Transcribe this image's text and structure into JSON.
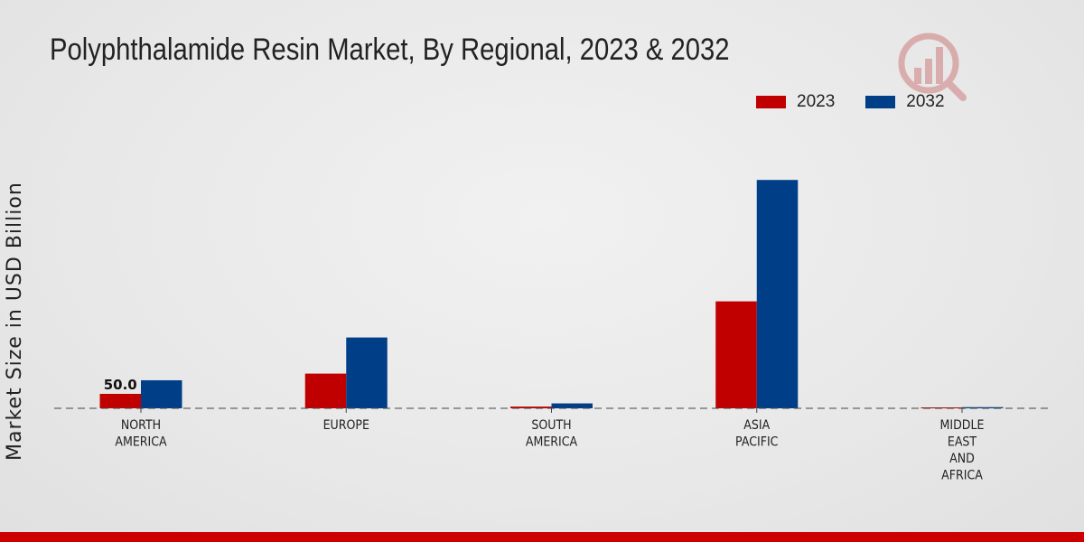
{
  "header": {
    "title": "Polyphthalamide Resin Market, By Regional, 2023 & 2032"
  },
  "colors": {
    "series_2023": "#c00000",
    "series_2032": "#003f87",
    "bottom_bar": "#cc0000"
  },
  "chart_data": {
    "type": "bar",
    "title": "Polyphthalamide Resin Market, By Regional, 2023 & 2032",
    "xlabel": "",
    "ylabel": "Market Size in USD Billion",
    "categories": [
      [
        "NORTH",
        "AMERICA"
      ],
      [
        "EUROPE"
      ],
      [
        "SOUTH",
        "AMERICA"
      ],
      [
        "ASIA",
        "PACIFIC"
      ],
      [
        "MIDDLE",
        "EAST",
        "AND",
        "AFRICA"
      ]
    ],
    "series": [
      {
        "name": "2023",
        "color": "#c00000",
        "values": [
          50.0,
          120.0,
          6.0,
          370.0,
          2.0
        ]
      },
      {
        "name": "2032",
        "color": "#003f87",
        "values": [
          97.0,
          245.0,
          17.0,
          790.0,
          4.0
        ]
      }
    ],
    "data_labels": [
      {
        "series": 0,
        "category": 0,
        "text": "50.0"
      }
    ],
    "ylim": [
      0,
      1100
    ],
    "grid": false,
    "legend": "top-right"
  }
}
